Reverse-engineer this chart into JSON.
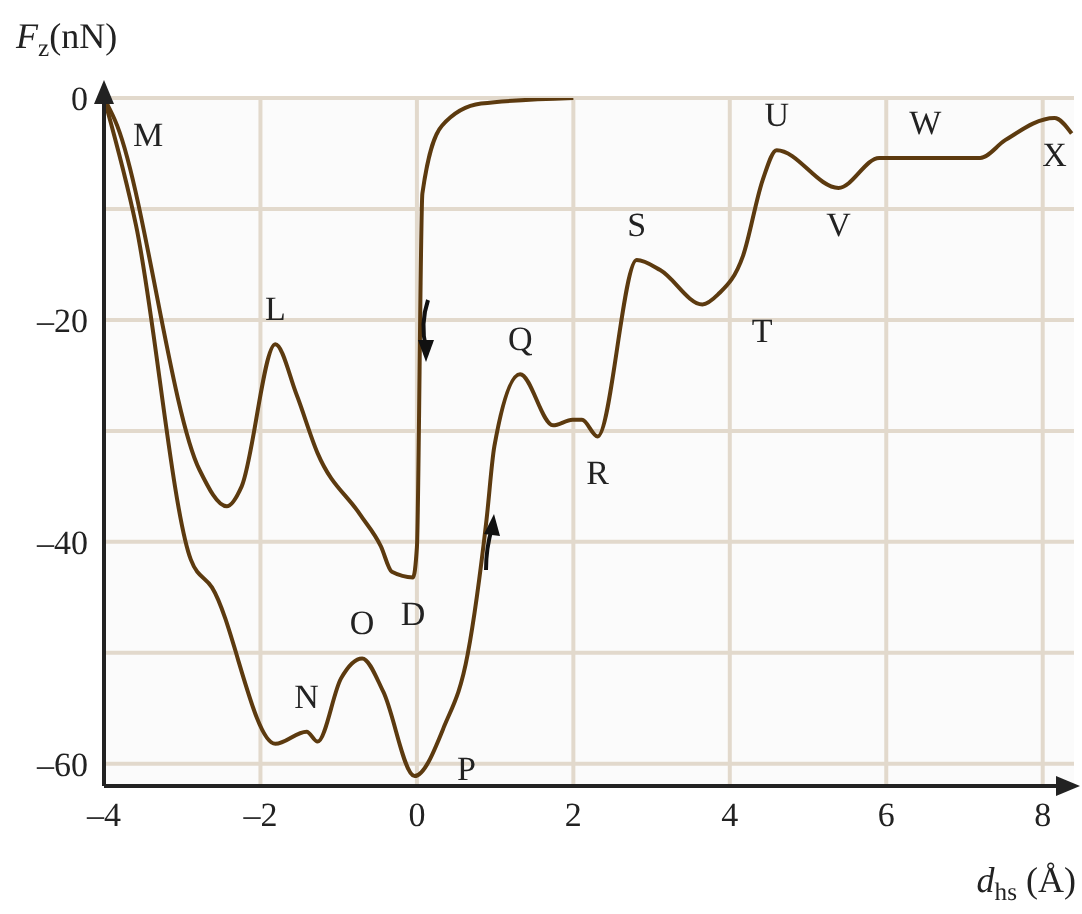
{
  "chart_data": {
    "type": "line",
    "xlabel": "d$_{hs}$ (Å)",
    "ylabel": "F$_{z}$(nN)",
    "xlim": [
      -4,
      8.4
    ],
    "ylim": [
      -62,
      0
    ],
    "xticks": [
      {
        "value": -4,
        "label": "–4"
      },
      {
        "value": -2,
        "label": "–2"
      },
      0,
      2,
      4,
      6,
      8
    ],
    "yticks": [
      {
        "value": -60,
        "label": "–60"
      },
      {
        "value": -50,
        "label": null
      },
      {
        "value": -40,
        "label": "–40"
      },
      {
        "value": -30,
        "label": null
      },
      {
        "value": -20,
        "label": "–20"
      },
      {
        "value": -10,
        "label": null
      },
      0
    ],
    "grid": true,
    "marker": "none",
    "line_style": "solid",
    "series": [
      {
        "color": "#5c3a0f",
        "x": [
          -4,
          -3.86,
          -2.78,
          -2.43,
          -2.24,
          -1.81,
          -1.54,
          -1.27,
          -0.73,
          -0.46,
          -0.32,
          -0.05,
          0,
          0.07,
          0.32,
          0.82,
          2.0
        ],
        "values": [
          0,
          -2,
          -33.5,
          -36.8,
          -35,
          -22.2,
          -26.7,
          -32,
          -37.5,
          -40.4,
          -42.7,
          -43.2,
          -40.5,
          -8.6,
          -2.5,
          -0.5,
          0
        ]
      },
      {
        "color": "#5c3a0f",
        "x": [
          -4,
          -3.59,
          -2.89,
          -2.62,
          -1.81,
          -1.41,
          -1.27,
          -0.97,
          -0.7,
          -0.43,
          -0.03,
          0.35,
          0.65,
          0.89,
          0.99,
          1.32,
          1.74,
          1.99,
          2.11,
          2.31,
          2.81,
          3.11,
          3.65,
          3.85,
          4.17,
          4.42,
          4.6,
          5.39,
          5.91,
          6.5,
          7.2,
          7.52,
          8.15,
          8.37
        ],
        "values": [
          0,
          -11.5,
          -41.6,
          -44.1,
          -58.2,
          -57.1,
          -58,
          -52.3,
          -50.5,
          -53.5,
          -61.1,
          -56.6,
          -50.1,
          -38,
          -31.4,
          -24.9,
          -29.5,
          -29,
          -29,
          -30.5,
          -14.6,
          -15.5,
          -18.6,
          -17.7,
          -14.2,
          -7.4,
          -4.7,
          -8.1,
          -5.4,
          -5.4,
          -5.4,
          -3.8,
          -1.8,
          -3.2
        ]
      }
    ],
    "annotations": [
      {
        "text": "M",
        "x": -4,
        "y": 0
      },
      {
        "text": "L",
        "x": -1.81,
        "y": -22.2
      },
      {
        "text": "D",
        "x": -0.05,
        "y": -43.2
      },
      {
        "text": "N",
        "x": -1.41,
        "y": -57.1
      },
      {
        "text": "O",
        "x": -0.7,
        "y": -50.5
      },
      {
        "text": "P",
        "x": -0.03,
        "y": -61.1
      },
      {
        "text": "Q",
        "x": 1.32,
        "y": -24.9
      },
      {
        "text": "R",
        "x": 2.31,
        "y": -30.5
      },
      {
        "text": "S",
        "x": 2.81,
        "y": -14.6
      },
      {
        "text": "T",
        "x": 3.85,
        "y": -17.7
      },
      {
        "text": "U",
        "x": 4.6,
        "y": -4.7
      },
      {
        "text": "V",
        "x": 5.39,
        "y": -8.1
      },
      {
        "text": "W",
        "x": 6.5,
        "y": -5.4
      },
      {
        "text": "X",
        "x": 8.15,
        "y": -1.8
      }
    ]
  }
}
